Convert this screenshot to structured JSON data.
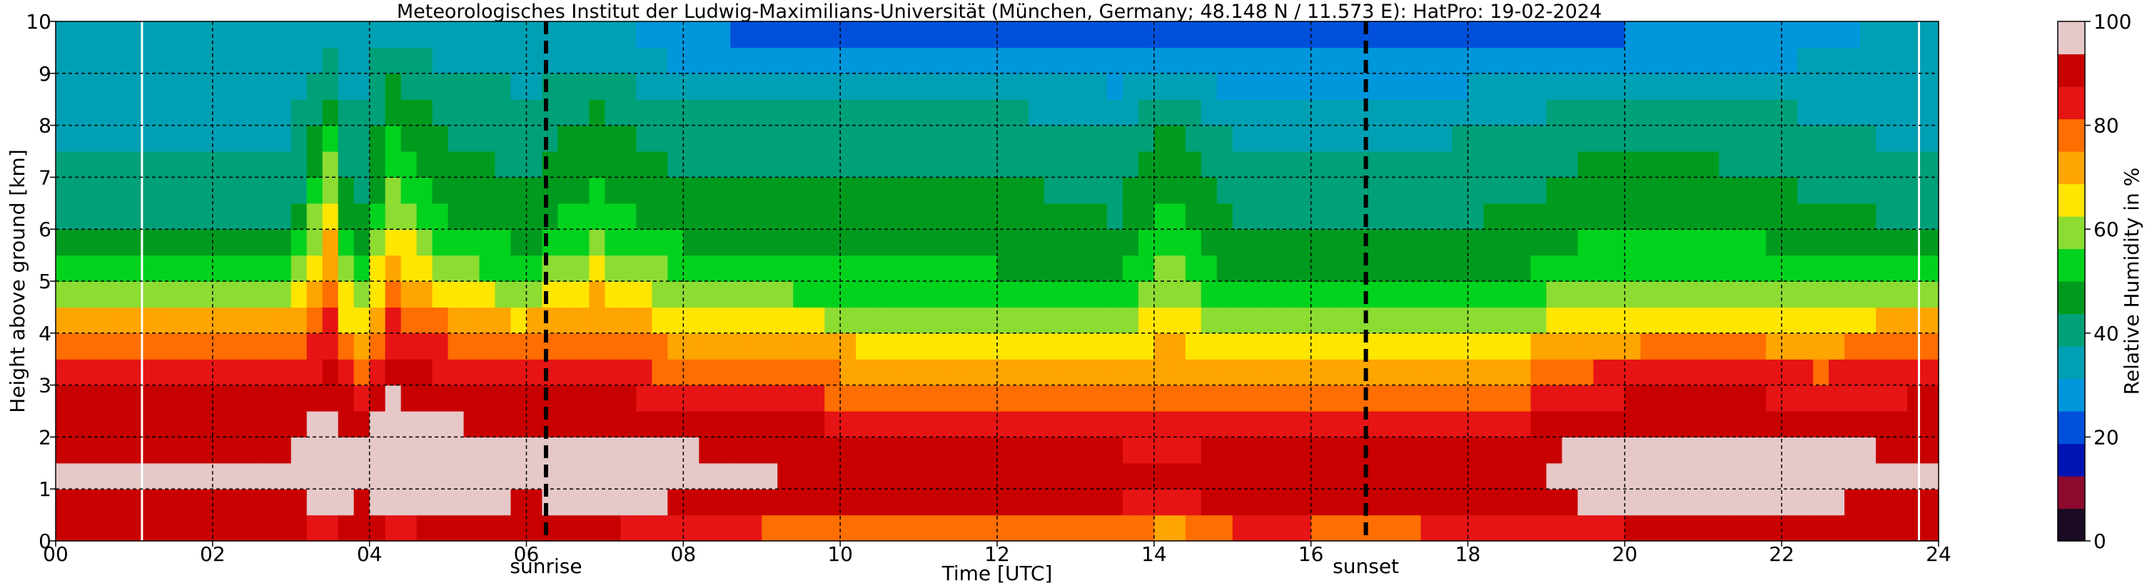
{
  "chart_data": {
    "type": "heatmap",
    "title": "Meteorologisches Institut der Ludwig-Maximilians-Universität (München, Germany; 48.148 N / 11.573 E):    HatPro: 19-02-2024",
    "xlabel": "Time [UTC]",
    "ylabel": "Height above ground [km]",
    "x_ticks": [
      "00",
      "02",
      "04",
      "06",
      "08",
      "10",
      "12",
      "14",
      "16",
      "18",
      "20",
      "22",
      "24"
    ],
    "y_ticks": [
      "0",
      "1",
      "2",
      "3",
      "4",
      "5",
      "6",
      "7",
      "8",
      "9",
      "10"
    ],
    "xlim": [
      0,
      24
    ],
    "ylim": [
      0,
      10
    ],
    "grid": true,
    "colorbar": {
      "label": "Relative Humidity in %",
      "ticks": [
        "0",
        "20",
        "40",
        "60",
        "80",
        "100"
      ],
      "range": [
        0,
        100
      ],
      "colors": [
        "#1a0a24",
        "#8b0a2e",
        "#0014b4",
        "#0050dc",
        "#0096dc",
        "#00a0b4",
        "#00a078",
        "#009b1e",
        "#00d21e",
        "#8cdc32",
        "#ffe600",
        "#ffa500",
        "#ff6e00",
        "#e61414",
        "#c80000",
        "#e6c8c8"
      ]
    },
    "markers": [
      {
        "label": "sunrise",
        "x": 6.25
      },
      {
        "label": "sunset",
        "x": 16.7
      }
    ],
    "vertical_white_lines": [
      1.1,
      23.75
    ],
    "profile_heights_km": [
      0,
      0.5,
      1,
      1.5,
      2,
      2.5,
      3,
      3.5,
      4,
      4.5,
      5,
      5.5,
      6,
      6.5,
      7,
      7.5,
      8,
      8.5,
      9,
      9.5,
      10
    ],
    "profiles": [
      {
        "t": 0.0,
        "rh": [
          85,
          92,
          94,
          94,
          93,
          90,
          85,
          80,
          74,
          66,
          56,
          50,
          46,
          40,
          38,
          37,
          36,
          35,
          35,
          34,
          34
        ]
      },
      {
        "t": 3.0,
        "rh": [
          85,
          92,
          94,
          94,
          93,
          90,
          85,
          80,
          74,
          66,
          56,
          50,
          46,
          40,
          38,
          37,
          36,
          35,
          35,
          34,
          34
        ]
      },
      {
        "t": 3.5,
        "rh": [
          80,
          93,
          98,
          99,
          98,
          95,
          92,
          88,
          84,
          80,
          76,
          72,
          68,
          64,
          60,
          56,
          52,
          46,
          40,
          36,
          34
        ]
      },
      {
        "t": 3.8,
        "rh": [
          85,
          92,
          94,
          94,
          92,
          88,
          82,
          74,
          66,
          58,
          52,
          46,
          42,
          38,
          36,
          36,
          35,
          35,
          34,
          34,
          34
        ]
      },
      {
        "t": 4.3,
        "rh": [
          80,
          94,
          99,
          99,
          98,
          96,
          94,
          90,
          85,
          80,
          74,
          70,
          64,
          58,
          55,
          52,
          50,
          46,
          42,
          38,
          35
        ]
      },
      {
        "t": 5.0,
        "rh": [
          82,
          94,
          97,
          98,
          96,
          92,
          88,
          84,
          78,
          70,
          62,
          56,
          52,
          48,
          46,
          44,
          42,
          40,
          38,
          36,
          34
        ]
      },
      {
        "t": 6.0,
        "rh": [
          84,
          92,
          95,
          96,
          93,
          90,
          86,
          80,
          72,
          64,
          56,
          50,
          48,
          46,
          44,
          42,
          40,
          38,
          36,
          35,
          34
        ]
      },
      {
        "t": 6.9,
        "rh": [
          82,
          94,
          97,
          98,
          95,
          92,
          88,
          84,
          78,
          72,
          66,
          60,
          55,
          52,
          50,
          48,
          46,
          42,
          38,
          35,
          33
        ]
      },
      {
        "t": 8.0,
        "rh": [
          80,
          92,
          95,
          95,
          93,
          88,
          82,
          76,
          70,
          62,
          56,
          52,
          48,
          46,
          44,
          42,
          40,
          36,
          32,
          28,
          26
        ]
      },
      {
        "t": 9.0,
        "rh": [
          72,
          90,
          94,
          94,
          92,
          86,
          80,
          74,
          68,
          60,
          54,
          50,
          48,
          46,
          44,
          42,
          40,
          36,
          30,
          26,
          22
        ]
      },
      {
        "t": 10.0,
        "rh": [
          70,
          88,
          92,
          93,
          90,
          84,
          78,
          72,
          66,
          58,
          52,
          48,
          46,
          45,
          44,
          42,
          40,
          36,
          30,
          25,
          20
        ]
      },
      {
        "t": 12.0,
        "rh": [
          72,
          88,
          92,
          92,
          88,
          82,
          76,
          70,
          64,
          58,
          52,
          48,
          46,
          45,
          44,
          42,
          40,
          36,
          30,
          25,
          20
        ]
      },
      {
        "t": 13.5,
        "rh": [
          74,
          86,
          90,
          90,
          86,
          80,
          74,
          68,
          62,
          56,
          50,
          46,
          44,
          43,
          42,
          40,
          38,
          34,
          28,
          24,
          20
        ]
      },
      {
        "t": 14.2,
        "rh": [
          65,
          82,
          88,
          88,
          84,
          80,
          76,
          72,
          68,
          64,
          60,
          56,
          54,
          52,
          50,
          48,
          44,
          38,
          30,
          24,
          20
        ]
      },
      {
        "t": 15.0,
        "rh": [
          75,
          88,
          92,
          92,
          88,
          82,
          76,
          70,
          62,
          55,
          50,
          46,
          44,
          42,
          40,
          38,
          36,
          32,
          28,
          24,
          20
        ]
      },
      {
        "t": 17.0,
        "rh": [
          74,
          88,
          92,
          92,
          88,
          82,
          75,
          68,
          60,
          54,
          49,
          46,
          44,
          42,
          40,
          38,
          36,
          32,
          28,
          24,
          20
        ]
      },
      {
        "t": 18.5,
        "rh": [
          76,
          88,
          92,
          92,
          88,
          82,
          76,
          70,
          62,
          56,
          50,
          47,
          45,
          43,
          41,
          39,
          37,
          34,
          30,
          26,
          22
        ]
      },
      {
        "t": 19.5,
        "rh": [
          82,
          92,
          96,
          96,
          94,
          90,
          84,
          78,
          70,
          62,
          56,
          52,
          50,
          47,
          45,
          43,
          41,
          37,
          32,
          27,
          22
        ]
      },
      {
        "t": 21.0,
        "rh": [
          84,
          93,
          97,
          97,
          95,
          91,
          86,
          80,
          72,
          64,
          57,
          53,
          50,
          47,
          45,
          43,
          41,
          38,
          33,
          28,
          24
        ]
      },
      {
        "t": 22.5,
        "rh": [
          84,
          92,
          96,
          96,
          93,
          89,
          84,
          78,
          70,
          62,
          55,
          50,
          47,
          44,
          42,
          40,
          38,
          36,
          33,
          30,
          28
        ]
      },
      {
        "t": 23.5,
        "rh": [
          85,
          92,
          94,
          94,
          93,
          90,
          85,
          80,
          74,
          66,
          56,
          50,
          46,
          40,
          38,
          37,
          36,
          35,
          35,
          34,
          34
        ]
      },
      {
        "t": 24.0,
        "rh": [
          85,
          92,
          94,
          94,
          93,
          90,
          85,
          80,
          74,
          66,
          56,
          50,
          46,
          40,
          38,
          37,
          36,
          35,
          35,
          34,
          34
        ]
      }
    ]
  }
}
